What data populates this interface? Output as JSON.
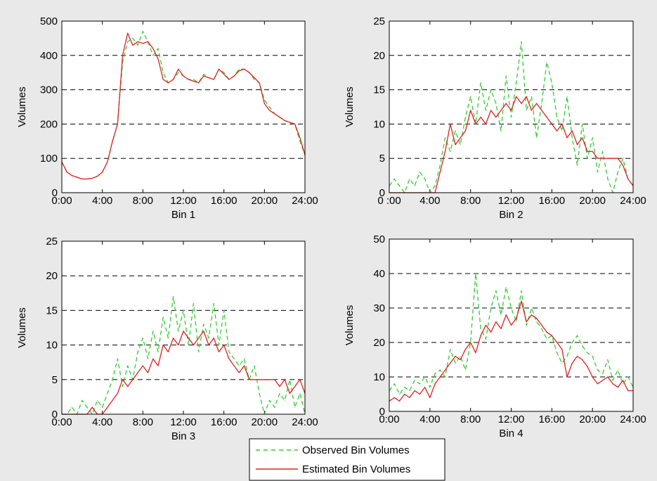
{
  "colors": {
    "background": "#e9e9e9",
    "plot_area": "#ffffff",
    "observed": "#33cc33",
    "estimated": "#dd2222",
    "grid": "#000000"
  },
  "legend": {
    "entries": [
      {
        "label": "Observed Bin Volumes",
        "style": "dashed",
        "color": "#33cc33"
      },
      {
        "label": "Estimated Bin Volumes",
        "style": "solid",
        "color": "#dd2222"
      }
    ],
    "placement": "bottom-center"
  },
  "chart_data": [
    {
      "type": "line",
      "xlabel": "Bin 1",
      "ylabel": "Volumes",
      "xticks": [
        "0:00",
        "4:00",
        "8:00",
        "12:00",
        "16:00",
        "20:00",
        "24:00"
      ],
      "xlim": [
        0,
        24
      ],
      "ylim": [
        0,
        500
      ],
      "yticks": [
        0,
        100,
        200,
        300,
        400,
        500
      ],
      "grid": "horizontal-dashed",
      "series": [
        {
          "name": "Observed Bin Volumes",
          "style": "dashed",
          "x": [
            0,
            0.5,
            1,
            1.5,
            2,
            2.5,
            3,
            3.5,
            4,
            4.5,
            5,
            5.5,
            6,
            6.5,
            7,
            7.5,
            8,
            8.5,
            9,
            9.5,
            10,
            10.5,
            11,
            11.5,
            12,
            12.5,
            13,
            13.5,
            14,
            14.5,
            15,
            15.5,
            16,
            16.5,
            17,
            17.5,
            18,
            18.5,
            19,
            19.5,
            20,
            20.5,
            21,
            21.5,
            22,
            22.5,
            23,
            23.5,
            24
          ],
          "y": [
            90,
            60,
            50,
            45,
            40,
            40,
            42,
            48,
            60,
            90,
            150,
            200,
            380,
            440,
            450,
            430,
            470,
            440,
            400,
            420,
            350,
            320,
            330,
            350,
            340,
            330,
            330,
            320,
            345,
            335,
            330,
            360,
            350,
            330,
            340,
            360,
            360,
            350,
            330,
            320,
            270,
            250,
            230,
            220,
            210,
            205,
            200,
            150,
            110
          ]
        },
        {
          "name": "Estimated Bin Volumes",
          "style": "solid",
          "x": [
            0,
            0.5,
            1,
            1.5,
            2,
            2.5,
            3,
            3.5,
            4,
            4.5,
            5,
            5.5,
            6,
            6.5,
            7,
            7.5,
            8,
            8.5,
            9,
            9.5,
            10,
            10.5,
            11,
            11.5,
            12,
            12.5,
            13,
            13.5,
            14,
            14.5,
            15,
            15.5,
            16,
            16.5,
            17,
            17.5,
            18,
            18.5,
            19,
            19.5,
            20,
            20.5,
            21,
            21.5,
            22,
            22.5,
            23,
            23.5,
            24
          ],
          "y": [
            90,
            60,
            50,
            45,
            40,
            40,
            42,
            48,
            60,
            90,
            150,
            200,
            400,
            465,
            430,
            440,
            435,
            440,
            420,
            390,
            330,
            320,
            330,
            360,
            340,
            330,
            325,
            320,
            340,
            335,
            330,
            360,
            345,
            330,
            340,
            355,
            360,
            350,
            335,
            320,
            260,
            240,
            230,
            220,
            210,
            205,
            200,
            160,
            110
          ]
        }
      ]
    },
    {
      "type": "line",
      "xlabel": "Bin 2",
      "ylabel": "Volumes",
      "xticks": [
        "0 :00",
        "4:00",
        "8:00",
        "12:00",
        "16:00",
        "20:00",
        "24:00"
      ],
      "xlim": [
        0,
        24
      ],
      "ylim": [
        0,
        25
      ],
      "yticks": [
        0,
        5,
        10,
        15,
        20,
        25
      ],
      "grid": "horizontal-dashed",
      "series": [
        {
          "name": "Observed Bin Volumes",
          "style": "dashed",
          "x": [
            0,
            0.5,
            1,
            1.5,
            2,
            2.5,
            3,
            3.5,
            4,
            4.5,
            5,
            5.5,
            6,
            6.5,
            7,
            7.5,
            8,
            8.5,
            9,
            9.5,
            10,
            10.5,
            11,
            11.5,
            12,
            12.5,
            13,
            13.5,
            14,
            14.5,
            15,
            15.5,
            16,
            16.5,
            17,
            17.5,
            18,
            18.5,
            19,
            19.5,
            20,
            20.5,
            21,
            21.5,
            22,
            22.5,
            23,
            23.5,
            24
          ],
          "y": [
            1,
            2,
            1,
            0,
            2,
            1,
            3,
            2,
            0,
            1,
            4,
            8,
            6,
            9,
            7,
            11,
            14,
            10,
            16,
            12,
            15,
            13,
            9,
            17,
            11,
            16,
            22,
            12,
            14,
            8,
            13,
            19,
            16,
            11,
            9,
            14,
            8,
            4,
            10,
            5,
            8,
            3,
            6,
            2,
            0,
            3,
            5,
            2,
            1
          ]
        },
        {
          "name": "Estimated Bin Volumes",
          "style": "solid",
          "x": [
            0,
            0.5,
            1,
            1.5,
            2,
            2.5,
            3,
            3.5,
            4,
            4.5,
            5,
            5.5,
            6,
            6.5,
            7,
            7.5,
            8,
            8.5,
            9,
            9.5,
            10,
            10.5,
            11,
            11.5,
            12,
            12.5,
            13,
            13.5,
            14,
            14.5,
            15,
            15.5,
            16,
            16.5,
            17,
            17.5,
            18,
            18.5,
            19,
            19.5,
            20,
            20.5,
            21,
            21.5,
            22,
            22.5,
            23,
            23.5,
            24
          ],
          "y": [
            0,
            0,
            0,
            0,
            0,
            0,
            0,
            0,
            0,
            0,
            3,
            6,
            10,
            7,
            8,
            9,
            12,
            10,
            11,
            10,
            12,
            11,
            12,
            13,
            12,
            14,
            13,
            14,
            12,
            13,
            12,
            11,
            10,
            9,
            10,
            8,
            9,
            7,
            8,
            6,
            6,
            5,
            5,
            5,
            5,
            5,
            4,
            2,
            1
          ]
        }
      ]
    },
    {
      "type": "line",
      "xlabel": "Bin 3",
      "ylabel": "Volumes",
      "xticks": [
        "0:00",
        "4:00",
        "8:00",
        "12:00",
        "16:00",
        "20:00",
        "24:00"
      ],
      "xlim": [
        0,
        24
      ],
      "ylim": [
        0,
        25
      ],
      "yticks": [
        0,
        5,
        10,
        15,
        20,
        25
      ],
      "grid": "horizontal-dashed",
      "series": [
        {
          "name": "Observed Bin Volumes",
          "style": "dashed",
          "x": [
            0,
            0.5,
            1,
            1.5,
            2,
            2.5,
            3,
            3.5,
            4,
            4.5,
            5,
            5.5,
            6,
            6.5,
            7,
            7.5,
            8,
            8.5,
            9,
            9.5,
            10,
            10.5,
            11,
            11.5,
            12,
            12.5,
            13,
            13.5,
            14,
            14.5,
            15,
            15.5,
            16,
            16.5,
            17,
            17.5,
            18,
            18.5,
            19,
            19.5,
            20,
            20.5,
            21,
            21.5,
            22,
            22.5,
            23,
            23.5,
            24
          ],
          "y": [
            0,
            0,
            1,
            0,
            2,
            1,
            0,
            2,
            1,
            3,
            5,
            8,
            4,
            7,
            5,
            9,
            11,
            8,
            12,
            9,
            14,
            11,
            17,
            12,
            15,
            10,
            16,
            9,
            13,
            11,
            16,
            10,
            15,
            9,
            8,
            7,
            8,
            5,
            7,
            3,
            0,
            2,
            1,
            3,
            2,
            5,
            1,
            3,
            0
          ]
        },
        {
          "name": "Estimated Bin Volumes",
          "style": "solid",
          "x": [
            0,
            0.5,
            1,
            1.5,
            2,
            2.5,
            3,
            3.5,
            4,
            4.5,
            5,
            5.5,
            6,
            6.5,
            7,
            7.5,
            8,
            8.5,
            9,
            9.5,
            10,
            10.5,
            11,
            11.5,
            12,
            12.5,
            13,
            13.5,
            14,
            14.5,
            15,
            15.5,
            16,
            16.5,
            17,
            17.5,
            18,
            18.5,
            19,
            19.5,
            20,
            20.5,
            21,
            21.5,
            22,
            22.5,
            23,
            23.5,
            24
          ],
          "y": [
            0,
            0,
            0,
            0,
            0,
            0,
            1,
            0,
            0,
            1,
            2,
            3,
            5,
            4,
            5,
            6,
            7,
            6,
            8,
            7,
            10,
            9,
            11,
            10,
            12,
            11,
            10,
            11,
            12,
            10,
            11,
            9,
            10,
            8,
            7,
            6,
            7,
            5,
            5,
            5,
            5,
            5,
            5,
            4,
            5,
            3,
            4,
            5,
            3
          ]
        }
      ]
    },
    {
      "type": "line",
      "xlabel": "Bin 4",
      "ylabel": "Volumes",
      "xticks": [
        "0:00",
        "4:00",
        "8:00",
        "12:00",
        "16:00",
        "20:00",
        "24:00"
      ],
      "xlim": [
        0,
        24
      ],
      "ylim": [
        0,
        50
      ],
      "yticks": [
        0,
        10,
        20,
        30,
        40,
        50
      ],
      "grid": "horizontal-dashed",
      "series": [
        {
          "name": "Observed Bin Volumes",
          "style": "dashed",
          "x": [
            0,
            0.5,
            1,
            1.5,
            2,
            2.5,
            3,
            3.5,
            4,
            4.5,
            5,
            5.5,
            6,
            6.5,
            7,
            7.5,
            8,
            8.5,
            9,
            9.5,
            10,
            10.5,
            11,
            11.5,
            12,
            12.5,
            13,
            13.5,
            14,
            14.5,
            15,
            15.5,
            16,
            16.5,
            17,
            17.5,
            18,
            18.5,
            19,
            19.5,
            20,
            20.5,
            21,
            21.5,
            22,
            22.5,
            23,
            23.5,
            24
          ],
          "y": [
            6,
            8,
            5,
            7,
            6,
            9,
            8,
            10,
            7,
            11,
            12,
            10,
            18,
            14,
            16,
            12,
            20,
            40,
            24,
            21,
            30,
            35,
            28,
            36,
            30,
            26,
            35,
            25,
            30,
            26,
            24,
            21,
            22,
            17,
            14,
            16,
            20,
            22,
            19,
            17,
            16,
            12,
            11,
            15,
            9,
            12,
            8,
            10,
            7
          ]
        },
        {
          "name": "Estimated Bin Volumes",
          "style": "solid",
          "x": [
            0,
            0.5,
            1,
            1.5,
            2,
            2.5,
            3,
            3.5,
            4,
            4.5,
            5,
            5.5,
            6,
            6.5,
            7,
            7.5,
            8,
            8.5,
            9,
            9.5,
            10,
            10.5,
            11,
            11.5,
            12,
            12.5,
            13,
            13.5,
            14,
            14.5,
            15,
            15.5,
            16,
            16.5,
            17,
            17.5,
            18,
            18.5,
            19,
            19.5,
            20,
            20.5,
            21,
            21.5,
            22,
            22.5,
            23,
            23.5,
            24
          ],
          "y": [
            3,
            4,
            3,
            5,
            4,
            6,
            5,
            7,
            4,
            8,
            10,
            12,
            14,
            16,
            15,
            18,
            20,
            17,
            22,
            25,
            23,
            26,
            24,
            28,
            25,
            27,
            32,
            26,
            28,
            27,
            25,
            23,
            22,
            20,
            18,
            10,
            14,
            16,
            15,
            13,
            10,
            8,
            9,
            10,
            8,
            7,
            9,
            6,
            6
          ]
        }
      ]
    }
  ]
}
